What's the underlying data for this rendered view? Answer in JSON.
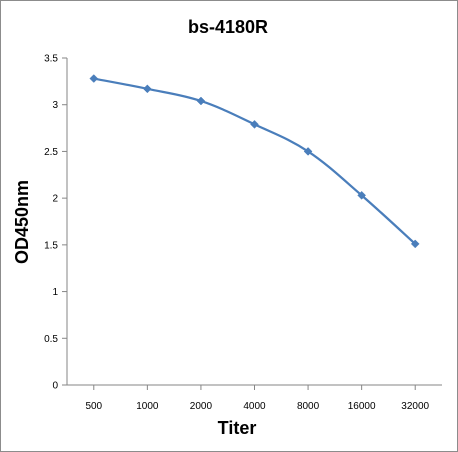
{
  "chart_data": {
    "type": "line",
    "title": "bs-4180R",
    "xlabel": "Titer",
    "ylabel": "OD450nm",
    "categories": [
      "500",
      "1000",
      "2000",
      "4000",
      "8000",
      "16000",
      "32000"
    ],
    "series": [
      {
        "values": [
          3.28,
          3.17,
          3.04,
          2.79,
          2.5,
          2.03,
          1.51
        ]
      }
    ],
    "ylim": [
      0,
      3.5
    ],
    "yticks": [
      "0",
      "0.5",
      "1",
      "1.5",
      "2",
      "2.5",
      "3",
      "3.5"
    ],
    "grid": false,
    "legend": "none",
    "series_color": "#4a7ebb",
    "marker": "diamond"
  }
}
